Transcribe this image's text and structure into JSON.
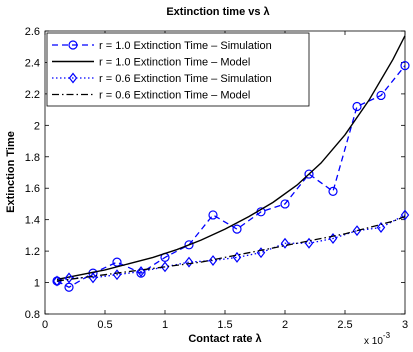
{
  "chart_data": {
    "type": "line",
    "title": "Extinction time vs λ",
    "xlabel": "Contact rate λ",
    "ylabel": "Extinction Time",
    "x_multiplier": "x 10",
    "x_exponent": "-3",
    "xlim": [
      0,
      3
    ],
    "ylim": [
      0.8,
      2.6
    ],
    "xticks": [
      "0",
      "0.5",
      "1",
      "1.5",
      "2",
      "2.5",
      "3"
    ],
    "yticks": [
      "0.8",
      "1",
      "1.2",
      "1.4",
      "1.6",
      "1.8",
      "2",
      "2.2",
      "2.4",
      "2.6"
    ],
    "grid": false,
    "legend_position": "top-left",
    "series": [
      {
        "name": "r = 1.0 Extinction Time – Simulation",
        "style": "dashed-circle",
        "color": "#0000ff",
        "x": [
          0.1,
          0.2,
          0.4,
          0.6,
          0.8,
          1.0,
          1.2,
          1.4,
          1.6,
          1.8,
          2.0,
          2.2,
          2.4,
          2.6,
          2.8,
          3.0
        ],
        "y": [
          1.01,
          0.97,
          1.06,
          1.13,
          1.06,
          1.16,
          1.24,
          1.43,
          1.34,
          1.45,
          1.5,
          1.69,
          1.58,
          2.12,
          2.19,
          2.38
        ]
      },
      {
        "name": "r = 1.0 Extinction Time – Model",
        "style": "solid",
        "color": "#000000",
        "x": [
          0.1,
          0.3,
          0.5,
          0.7,
          0.9,
          1.1,
          1.3,
          1.5,
          1.7,
          1.9,
          2.1,
          2.3,
          2.5,
          2.7,
          2.9,
          3.0
        ],
        "y": [
          1.02,
          1.05,
          1.08,
          1.12,
          1.16,
          1.21,
          1.27,
          1.34,
          1.42,
          1.51,
          1.62,
          1.76,
          1.94,
          2.16,
          2.42,
          2.57
        ]
      },
      {
        "name": "r = 0.6 Extinction Time – Simulation",
        "style": "dotted-diamond",
        "color": "#0000ff",
        "x": [
          0.1,
          0.2,
          0.4,
          0.6,
          0.8,
          1.0,
          1.2,
          1.4,
          1.6,
          1.8,
          2.0,
          2.2,
          2.4,
          2.6,
          2.8,
          3.0
        ],
        "y": [
          1.01,
          1.03,
          1.03,
          1.05,
          1.07,
          1.1,
          1.13,
          1.14,
          1.16,
          1.19,
          1.25,
          1.25,
          1.28,
          1.33,
          1.35,
          1.43
        ]
      },
      {
        "name": "r = 0.6 Extinction Time – Model",
        "style": "dash-dot",
        "color": "#000000",
        "x": [
          0.1,
          0.3,
          0.5,
          0.7,
          0.9,
          1.1,
          1.3,
          1.5,
          1.7,
          1.9,
          2.1,
          2.3,
          2.5,
          2.7,
          2.9,
          3.0
        ],
        "y": [
          1.01,
          1.03,
          1.05,
          1.07,
          1.09,
          1.11,
          1.13,
          1.16,
          1.19,
          1.22,
          1.25,
          1.28,
          1.31,
          1.35,
          1.39,
          1.42
        ]
      }
    ]
  }
}
